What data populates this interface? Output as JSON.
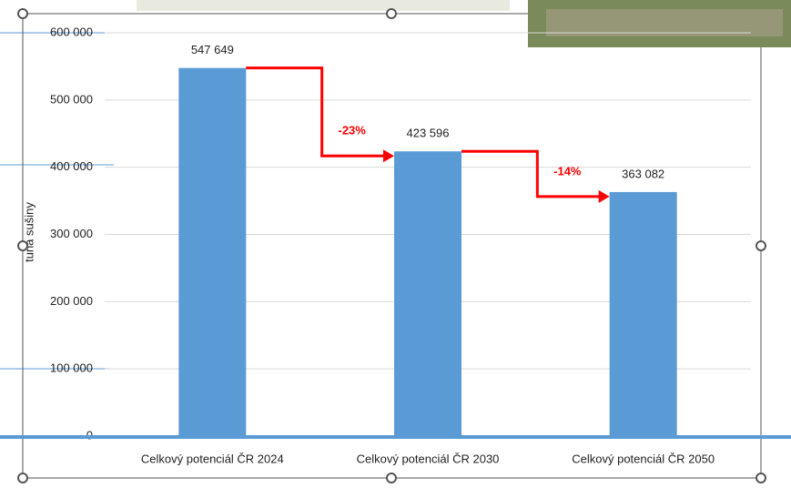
{
  "chart_data": {
    "type": "bar",
    "y_label": "tuna sušiny",
    "categories": [
      "Celkový potenciál ČR 2024",
      "Celkový potenciál ČR 2030",
      "Celkový potenciál ČR 2050"
    ],
    "values": [
      547649,
      423596,
      363082
    ],
    "value_labels": [
      "547 649",
      "423 596",
      "363 082"
    ],
    "color": "#5b9bd5",
    "ylim": [
      0,
      600000
    ],
    "yticks": [
      0,
      {
        "value": 100000,
        "label": "100 000"
      },
      {
        "value": 200000,
        "label": "200 000"
      },
      {
        "value": 300000,
        "label": "300 000"
      },
      {
        "value": 400000,
        "label": "400 000"
      },
      {
        "value": 500000,
        "label": "500 000"
      },
      {
        "value": 600000,
        "label": "600 000"
      }
    ],
    "grid": true,
    "annotations": [
      "-23%",
      "-14%"
    ],
    "annotation_color": "#ff0000"
  }
}
